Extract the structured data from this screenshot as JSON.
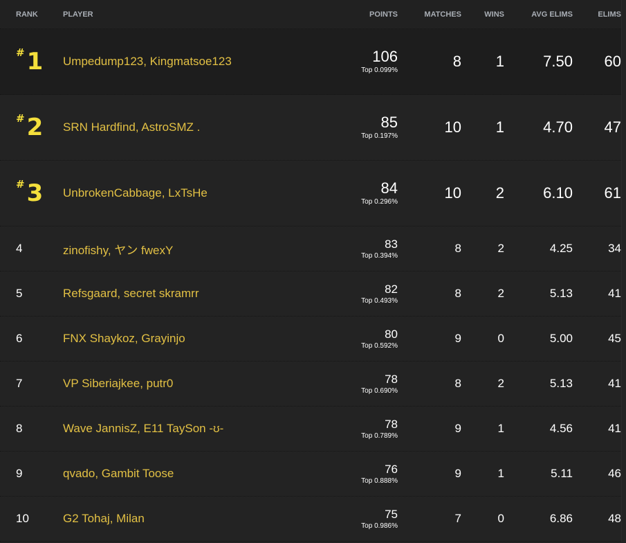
{
  "headers": {
    "rank": "RANK",
    "player": "PLAYER",
    "points": "POINTS",
    "matches": "MATCHES",
    "wins": "WINS",
    "avg_elims": "AVG ELIMS",
    "elims": "ELIMS"
  },
  "rank_prefix": "#",
  "rows": [
    {
      "rank": "1",
      "player": "Umpedump123, Kingmatsoe123",
      "points": "106",
      "top": "Top 0.099%",
      "matches": "8",
      "wins": "1",
      "avg_elims": "7.50",
      "elims": "60"
    },
    {
      "rank": "2",
      "player": "SRN Hardfind, AstroSMZ .",
      "points": "85",
      "top": "Top 0.197%",
      "matches": "10",
      "wins": "1",
      "avg_elims": "4.70",
      "elims": "47"
    },
    {
      "rank": "3",
      "player": "UnbrokenCabbage, LxTsHe",
      "points": "84",
      "top": "Top 0.296%",
      "matches": "10",
      "wins": "2",
      "avg_elims": "6.10",
      "elims": "61"
    },
    {
      "rank": "4",
      "player": "zinofishy, ヤン fwexY",
      "points": "83",
      "top": "Top 0.394%",
      "matches": "8",
      "wins": "2",
      "avg_elims": "4.25",
      "elims": "34"
    },
    {
      "rank": "5",
      "player": "Refsgaard, secret skramrr",
      "points": "82",
      "top": "Top 0.493%",
      "matches": "8",
      "wins": "2",
      "avg_elims": "5.13",
      "elims": "41"
    },
    {
      "rank": "6",
      "player": "FNX Shaykoz, Grayinjo",
      "points": "80",
      "top": "Top 0.592%",
      "matches": "9",
      "wins": "0",
      "avg_elims": "5.00",
      "elims": "45"
    },
    {
      "rank": "7",
      "player": "VP Siberiajkee, putr0",
      "points": "78",
      "top": "Top 0.690%",
      "matches": "8",
      "wins": "2",
      "avg_elims": "5.13",
      "elims": "41"
    },
    {
      "rank": "8",
      "player": "Wave JannisZ, E11 TaySon -ʊ-",
      "points": "78",
      "top": "Top 0.789%",
      "matches": "9",
      "wins": "1",
      "avg_elims": "4.56",
      "elims": "41"
    },
    {
      "rank": "9",
      "player": "qvado, Gambit Toose",
      "points": "76",
      "top": "Top 0.888%",
      "matches": "9",
      "wins": "1",
      "avg_elims": "5.11",
      "elims": "46"
    },
    {
      "rank": "10",
      "player": "G2 Tohaj, Milan",
      "points": "75",
      "top": "Top 0.986%",
      "matches": "7",
      "wins": "0",
      "avg_elims": "6.86",
      "elims": "48"
    }
  ],
  "colors": {
    "player": "#e2c044",
    "rank_top": "#f4df3c",
    "background": "#232323"
  }
}
